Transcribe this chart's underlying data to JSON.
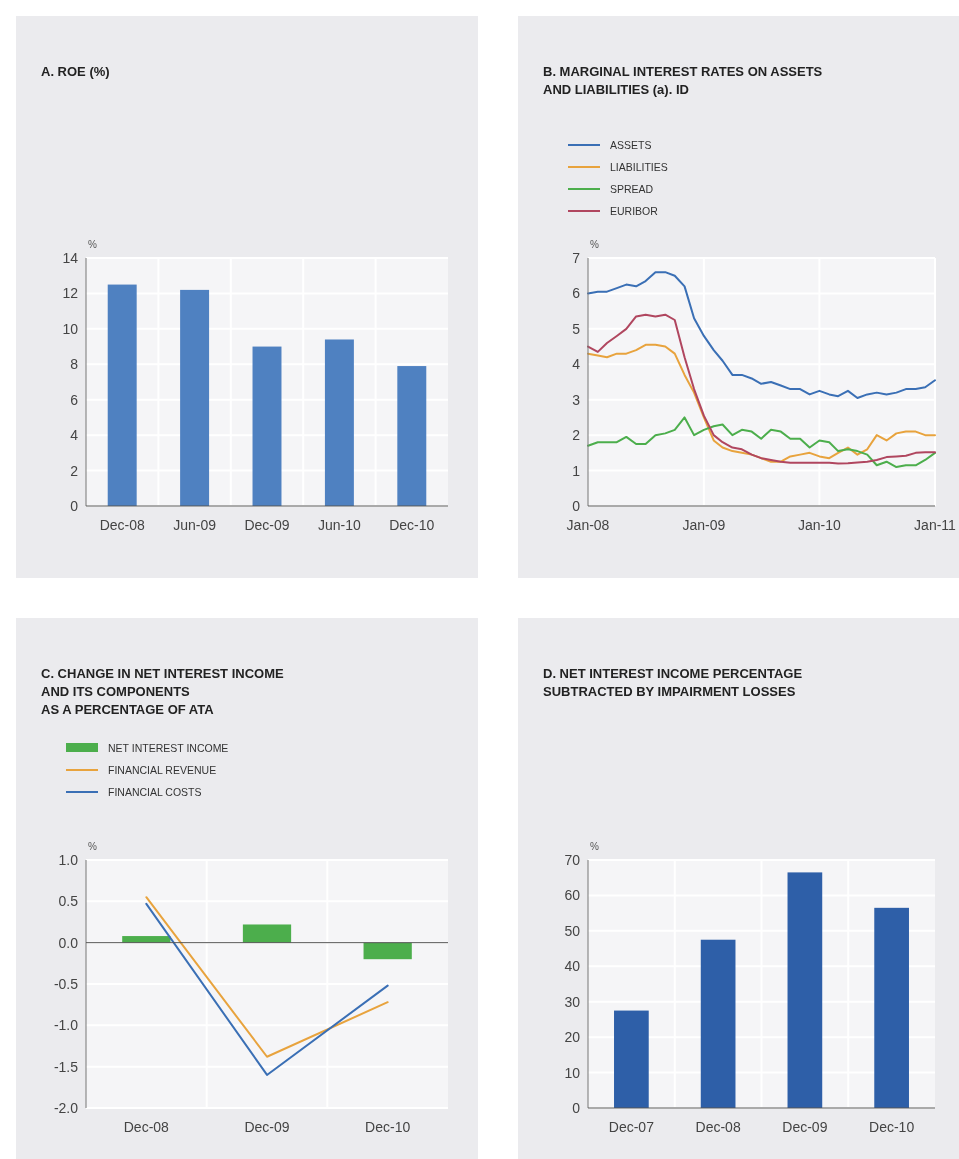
{
  "chart_data": [
    {
      "type": "bar",
      "title": "A. ROE (%)",
      "ylabel": "%",
      "categories": [
        "Dec-08",
        "Jun-09",
        "Dec-09",
        "Jun-10",
        "Dec-10"
      ],
      "values": [
        12.5,
        12.2,
        9.0,
        9.4,
        7.9
      ],
      "color": "#4f81c1",
      "ylim": [
        0,
        14
      ],
      "yticks": [
        0,
        2,
        4,
        6,
        8,
        10,
        12,
        14
      ],
      "grid": true
    },
    {
      "type": "line",
      "title": "B. MARGINAL INTEREST RATES ON ASSETS\nAND LIABILITIES (a). ID",
      "ylabel": "%",
      "legend": "top left",
      "x": [
        "2008-01",
        "2008-02",
        "2008-03",
        "2008-04",
        "2008-05",
        "2008-06",
        "2008-07",
        "2008-08",
        "2008-09",
        "2008-10",
        "2008-11",
        "2008-12",
        "2009-01",
        "2009-02",
        "2009-03",
        "2009-04",
        "2009-05",
        "2009-06",
        "2009-07",
        "2009-08",
        "2009-09",
        "2009-10",
        "2009-11",
        "2009-12",
        "2010-01",
        "2010-02",
        "2010-03",
        "2010-04",
        "2010-05",
        "2010-06",
        "2010-07",
        "2010-08",
        "2010-09",
        "2010-10",
        "2010-11",
        "2010-12",
        "2011-01"
      ],
      "xlim": [
        "2008-01",
        "2011-01"
      ],
      "xticks": [
        {
          "value": "2008-01",
          "label": "Jan-08"
        },
        {
          "value": "2009-01",
          "label": "Jan-09"
        },
        {
          "value": "2010-01",
          "label": "Jan-10"
        },
        {
          "value": "2011-01",
          "label": "Jan-11"
        }
      ],
      "ylim": [
        0,
        7
      ],
      "yticks": [
        0,
        1,
        2,
        3,
        4,
        5,
        6,
        7
      ],
      "grid": true,
      "series": [
        {
          "name": "ASSETS",
          "color": "#3a6fb5",
          "values": [
            6.0,
            6.05,
            6.05,
            6.15,
            6.25,
            6.2,
            6.35,
            6.6,
            6.6,
            6.5,
            6.2,
            5.3,
            4.8,
            4.4,
            4.1,
            3.7,
            3.7,
            3.6,
            3.45,
            3.5,
            3.4,
            3.3,
            3.3,
            3.15,
            3.25,
            3.15,
            3.1,
            3.25,
            3.05,
            3.15,
            3.2,
            3.15,
            3.2,
            3.3,
            3.3,
            3.35,
            3.55
          ]
        },
        {
          "name": "LIABILITIES",
          "color": "#e8a33d",
          "values": [
            4.3,
            4.25,
            4.2,
            4.3,
            4.3,
            4.4,
            4.55,
            4.55,
            4.5,
            4.3,
            3.7,
            3.2,
            2.5,
            1.85,
            1.65,
            1.55,
            1.5,
            1.45,
            1.35,
            1.25,
            1.25,
            1.4,
            1.45,
            1.5,
            1.4,
            1.35,
            1.5,
            1.65,
            1.45,
            1.6,
            2.0,
            1.85,
            2.05,
            2.1,
            2.1,
            2.0,
            2.0
          ]
        },
        {
          "name": "SPREAD",
          "color": "#4cae4c",
          "values": [
            1.7,
            1.8,
            1.8,
            1.8,
            1.95,
            1.75,
            1.75,
            2.0,
            2.05,
            2.15,
            2.5,
            2.0,
            2.15,
            2.25,
            2.3,
            2.0,
            2.15,
            2.1,
            1.9,
            2.15,
            2.1,
            1.9,
            1.9,
            1.65,
            1.85,
            1.8,
            1.55,
            1.6,
            1.55,
            1.45,
            1.15,
            1.25,
            1.1,
            1.15,
            1.15,
            1.3,
            1.5
          ]
        },
        {
          "name": "EURIBOR",
          "color": "#b0465f",
          "values": [
            4.5,
            4.35,
            4.6,
            4.8,
            5.0,
            5.35,
            5.4,
            5.35,
            5.4,
            5.25,
            4.2,
            3.3,
            2.55,
            2.0,
            1.8,
            1.65,
            1.6,
            1.45,
            1.35,
            1.3,
            1.25,
            1.22,
            1.22,
            1.22,
            1.22,
            1.22,
            1.2,
            1.21,
            1.23,
            1.25,
            1.3,
            1.38,
            1.4,
            1.42,
            1.5,
            1.52,
            1.52
          ]
        }
      ]
    },
    {
      "type": "bar",
      "title": "C. CHANGE IN NET INTEREST INCOME\nAND ITS COMPONENTS\nAS A PERCENTAGE OF ATA",
      "ylabel": "%",
      "legend": "top left",
      "categories": [
        "Dec-08",
        "Dec-09",
        "Dec-10"
      ],
      "ylim": [
        -2,
        1
      ],
      "yticks": [
        {
          "value": -2,
          "label": "-2.0"
        },
        {
          "value": -1.5,
          "label": "-1.5"
        },
        {
          "value": -1,
          "label": "-1.0"
        },
        {
          "value": -0.5,
          "label": "-0.5"
        },
        {
          "value": 0,
          "label": "0.0"
        },
        {
          "value": 0.5,
          "label": "0.5"
        },
        {
          "value": 1,
          "label": "1.0"
        }
      ],
      "grid": true,
      "series": [
        {
          "name": "NET INTEREST INCOME",
          "color": "#4cae4c",
          "values": [
            0.08,
            0.22,
            -0.2
          ]
        },
        {
          "name": "FINANCIAL REVENUE",
          "type": "line",
          "color": "#e8a33d",
          "values": [
            0.55,
            -1.38,
            -0.72
          ]
        },
        {
          "name": "FINANCIAL COSTS",
          "type": "line",
          "color": "#3a6fb5",
          "values": [
            0.47,
            -1.6,
            -0.52
          ]
        }
      ]
    },
    {
      "type": "bar",
      "title": "D. NET INTEREST INCOME PERCENTAGE\nSUBTRACTED BY IMPAIRMENT LOSSES",
      "ylabel": "%",
      "categories": [
        "Dec-07",
        "Dec-08",
        "Dec-09",
        "Dec-10"
      ],
      "values": [
        27.5,
        47.5,
        66.5,
        56.5
      ],
      "color": "#2e5fa8",
      "ylim": [
        0,
        70
      ],
      "yticks": [
        0,
        10,
        20,
        30,
        40,
        50,
        60,
        70
      ],
      "grid": true
    }
  ]
}
